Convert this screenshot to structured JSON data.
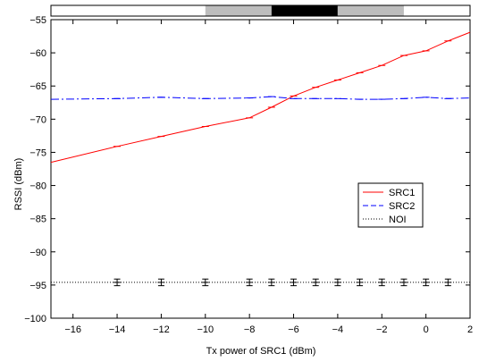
{
  "chart_data": {
    "type": "line",
    "xlabel": "Tx power of SRC1 (dBm)",
    "ylabel": "RSSI (dBm)",
    "xlim": [
      -17,
      2
    ],
    "ylim": [
      -100,
      -55
    ],
    "xticks": [
      -16,
      -14,
      -12,
      -10,
      -8,
      -6,
      -4,
      -2,
      0,
      2
    ],
    "yticks": [
      -100,
      -95,
      -90,
      -85,
      -80,
      -75,
      -70,
      -65,
      -60,
      -55
    ],
    "legend_position": "right",
    "colors": {
      "SRC1": "#ff0000",
      "SRC2": "#0000ff",
      "NOI": "#000000",
      "band_light": "#bdbdbd",
      "band_dark": "#000000"
    },
    "series": [
      {
        "name": "SRC1",
        "style": "solid",
        "x": [
          -17,
          -14,
          -12,
          -10,
          -8,
          -7,
          -6,
          -5,
          -4,
          -3,
          -2,
          -1,
          0,
          1,
          2
        ],
        "y": [
          -76.5,
          -74.1,
          -72.6,
          -71.1,
          -69.8,
          -68.2,
          -66.5,
          -65.2,
          -64.1,
          -63.0,
          -61.9,
          -60.4,
          -59.7,
          -58.2,
          -56.9
        ]
      },
      {
        "name": "SRC2",
        "style": "dashdot",
        "x": [
          -17,
          -14,
          -12,
          -10,
          -8,
          -7,
          -6,
          -5,
          -4,
          -3,
          -2,
          -1,
          0,
          1,
          2
        ],
        "y": [
          -67.0,
          -66.9,
          -66.7,
          -66.9,
          -66.8,
          -66.6,
          -66.9,
          -66.9,
          -66.9,
          -67.0,
          -67.0,
          -66.9,
          -66.7,
          -66.9,
          -66.8
        ]
      },
      {
        "name": "NOI",
        "style": "dotted",
        "x": [
          -17,
          -14,
          -12,
          -10,
          -8,
          -7,
          -6,
          -5,
          -4,
          -3,
          -2,
          -1,
          0,
          1,
          2
        ],
        "y": [
          -94.6,
          -94.6,
          -94.6,
          -94.6,
          -94.6,
          -94.6,
          -94.6,
          -94.6,
          -94.6,
          -94.6,
          -94.6,
          -94.6,
          -94.6,
          -94.6,
          -94.6
        ],
        "error_x": [
          -14,
          -12,
          -10,
          -8,
          -7,
          -6,
          -5,
          -4,
          -3,
          -2,
          -1,
          0,
          1
        ],
        "error": 0.5
      }
    ],
    "top_band": [
      {
        "from": -17,
        "to": -10,
        "level": "white"
      },
      {
        "from": -10,
        "to": -7,
        "level": "light"
      },
      {
        "from": -7,
        "to": -4,
        "level": "dark"
      },
      {
        "from": -4,
        "to": -1,
        "level": "light"
      },
      {
        "from": -1,
        "to": 2,
        "level": "white"
      }
    ]
  }
}
